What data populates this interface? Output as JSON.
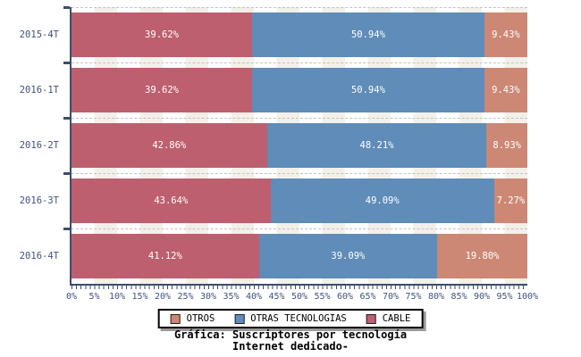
{
  "chart_data": {
    "type": "bar",
    "orientation": "horizontal",
    "stacked": true,
    "title_line1": "Gráfica: Suscriptores por tecnología",
    "title_line2": "Internet dedicado-",
    "categories": [
      "2015-4T",
      "2016-1T",
      "2016-2T",
      "2016-3T",
      "2016-4T"
    ],
    "series": [
      {
        "name": "CABLE",
        "color": "#bd5f6e",
        "values": [
          39.62,
          39.62,
          42.86,
          43.64,
          41.12
        ]
      },
      {
        "name": "OTRAS TECNOLOGIAS",
        "color": "#5f8cb8",
        "values": [
          50.94,
          50.94,
          48.21,
          49.09,
          39.09
        ]
      },
      {
        "name": "OTROS",
        "color": "#cc8874",
        "values": [
          9.43,
          9.43,
          8.93,
          7.27,
          19.8
        ]
      }
    ],
    "value_label_suffix": "%",
    "x_ticks": [
      "0%",
      "5%",
      "10%",
      "15%",
      "20%",
      "25%",
      "30%",
      "35%",
      "40%",
      "45%",
      "50%",
      "55%",
      "60%",
      "65%",
      "70%",
      "75%",
      "80%",
      "85%",
      "90%",
      "95%",
      "100%"
    ],
    "xlim": [
      0,
      100
    ],
    "grid": "dashed-horizontal",
    "legend_position": "bottom-center",
    "legend": [
      {
        "label": "OTROS",
        "color": "#cc8874"
      },
      {
        "label": "OTRAS TECNOLOGIAS",
        "color": "#5f8cb8"
      },
      {
        "label": "CABLE",
        "color": "#bd5f6e"
      }
    ]
  },
  "colors": {
    "axis_line": "#3d4d6e",
    "tick_text": "#44527a",
    "grid_dash": "#c3c3c3",
    "stripe_band": "#f3f0e9",
    "background": "#ffffff",
    "bar_value_text": "#ffffff",
    "legend_border": "#000000",
    "legend_shadow": "#9a9a9a"
  }
}
